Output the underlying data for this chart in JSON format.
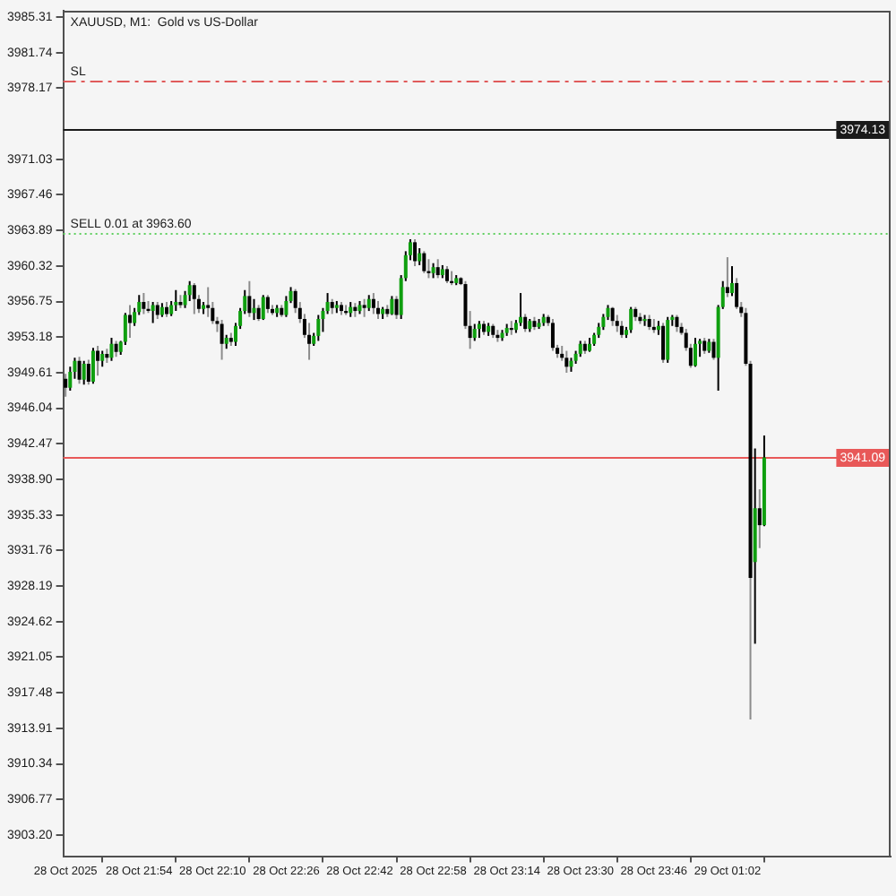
{
  "chart_data": {
    "type": "candlestick",
    "title": "XAUUSD, M1:  Gold vs US-Dollar",
    "categories": [
      "28 Oct 2025",
      null,
      null,
      null,
      null,
      null,
      null,
      null,
      null,
      null,
      null,
      null,
      null,
      null,
      null,
      null,
      "28 Oct 21:54",
      null,
      null,
      null,
      null,
      null,
      null,
      null,
      null,
      null,
      null,
      null,
      null,
      null,
      null,
      null,
      "28 Oct 22:10",
      null,
      null,
      null,
      null,
      null,
      null,
      null,
      null,
      null,
      null,
      null,
      null,
      null,
      null,
      null,
      "28 Oct 22:26",
      null,
      null,
      null,
      null,
      null,
      null,
      null,
      null,
      null,
      null,
      null,
      null,
      null,
      null,
      null,
      "28 Oct 22:42",
      null,
      null,
      null,
      null,
      null,
      null,
      null,
      null,
      null,
      null,
      null,
      null,
      null,
      null,
      null,
      "28 Oct 22:58",
      null,
      null,
      null,
      null,
      null,
      null,
      null,
      null,
      null,
      null,
      null,
      null,
      null,
      null,
      null,
      "28 Oct 23:14",
      null,
      null,
      null,
      null,
      null,
      null,
      null,
      null,
      null,
      null,
      null,
      null,
      null,
      null,
      null,
      "28 Oct 23:30",
      null,
      null,
      null,
      null,
      null,
      null,
      null,
      null,
      null,
      null,
      null,
      null,
      null,
      null,
      null,
      "28 Oct 23:46",
      null,
      null,
      null,
      null,
      null,
      null,
      null,
      null,
      null,
      null,
      null,
      null,
      null,
      null,
      null,
      "29 Oct 01:02",
      null,
      null,
      null,
      null,
      null,
      null,
      null,
      null
    ],
    "ohlc": [
      [
        3949.0,
        3949.5,
        3947.2,
        3948.1
      ],
      [
        3948.1,
        3950.2,
        3947.8,
        3949.7
      ],
      [
        3949.7,
        3951.1,
        3949.0,
        3950.8
      ],
      [
        3950.8,
        3951.2,
        3948.5,
        3948.9
      ],
      [
        3948.9,
        3950.8,
        3948.4,
        3950.5
      ],
      [
        3950.5,
        3950.9,
        3948.4,
        3948.7
      ],
      [
        3948.7,
        3952.1,
        3948.5,
        3951.8
      ],
      [
        3951.8,
        3952.3,
        3949.3,
        3950.8
      ],
      [
        3950.8,
        3951.8,
        3950.2,
        3951.5
      ],
      [
        3951.5,
        3952.0,
        3950.6,
        3951.1
      ],
      [
        3951.1,
        3953.1,
        3950.8,
        3952.5
      ],
      [
        3952.5,
        3952.8,
        3951.2,
        3951.7
      ],
      [
        3951.7,
        3952.8,
        3951.4,
        3952.7
      ],
      [
        3952.7,
        3955.6,
        3952.4,
        3955.4
      ],
      [
        3955.4,
        3956.4,
        3953.1,
        3954.6
      ],
      [
        3954.6,
        3956.1,
        3954.3,
        3955.7
      ],
      [
        3955.7,
        3957.4,
        3955.4,
        3956.7
      ],
      [
        3956.7,
        3957.6,
        3955.5,
        3956.0
      ],
      [
        3956.0,
        3956.8,
        3955.6,
        3955.8
      ],
      [
        3955.8,
        3956.7,
        3954.6,
        3956.4
      ],
      [
        3956.4,
        3956.7,
        3955.0,
        3955.4
      ],
      [
        3955.4,
        3956.6,
        3955.2,
        3956.2
      ],
      [
        3956.2,
        3956.7,
        3955.2,
        3955.5
      ],
      [
        3955.5,
        3956.8,
        3955.3,
        3956.4
      ],
      [
        3956.4,
        3957.9,
        3955.8,
        3956.7
      ],
      [
        3956.7,
        3957.4,
        3956.1,
        3956.4
      ],
      [
        3956.4,
        3957.8,
        3956.1,
        3957.4
      ],
      [
        3957.4,
        3958.8,
        3956.8,
        3958.4
      ],
      [
        3958.4,
        3958.6,
        3955.5,
        3957.0
      ],
      [
        3957.0,
        3957.4,
        3955.6,
        3956.0
      ],
      [
        3956.0,
        3956.7,
        3955.5,
        3956.4
      ],
      [
        3956.4,
        3958.2,
        3955.2,
        3956.1
      ],
      [
        3956.1,
        3956.7,
        3954.5,
        3954.8
      ],
      [
        3954.8,
        3955.2,
        3953.7,
        3954.5
      ],
      [
        3954.5,
        3954.9,
        3950.9,
        3952.5
      ],
      [
        3952.5,
        3953.4,
        3952.0,
        3953.1
      ],
      [
        3953.1,
        3953.6,
        3952.3,
        3952.7
      ],
      [
        3952.7,
        3954.6,
        3952.3,
        3954.3
      ],
      [
        3954.3,
        3956.1,
        3954.0,
        3955.8
      ],
      [
        3955.8,
        3957.9,
        3955.5,
        3957.3
      ],
      [
        3957.3,
        3958.8,
        3955.2,
        3955.6
      ],
      [
        3955.6,
        3957.0,
        3954.9,
        3956.1
      ],
      [
        3956.1,
        3956.4,
        3954.8,
        3955.0
      ],
      [
        3955.0,
        3957.4,
        3954.9,
        3957.2
      ],
      [
        3957.2,
        3957.4,
        3955.6,
        3956.0
      ],
      [
        3956.0,
        3956.4,
        3955.4,
        3955.6
      ],
      [
        3955.6,
        3956.4,
        3955.2,
        3956.1
      ],
      [
        3956.1,
        3956.4,
        3955.2,
        3955.4
      ],
      [
        3955.4,
        3957.3,
        3955.2,
        3956.8
      ],
      [
        3956.8,
        3958.2,
        3956.6,
        3957.8
      ],
      [
        3957.8,
        3958.0,
        3955.6,
        3956.1
      ],
      [
        3956.1,
        3956.7,
        3954.6,
        3955.0
      ],
      [
        3955.0,
        3955.5,
        3953.1,
        3953.4
      ],
      [
        3953.4,
        3954.6,
        3950.9,
        3952.5
      ],
      [
        3952.5,
        3953.6,
        3952.3,
        3953.3
      ],
      [
        3953.3,
        3955.4,
        3952.8,
        3955.0
      ],
      [
        3955.0,
        3956.1,
        3953.7,
        3955.8
      ],
      [
        3955.8,
        3957.6,
        3955.5,
        3956.7
      ],
      [
        3956.7,
        3957.0,
        3955.5,
        3956.1
      ],
      [
        3956.1,
        3956.8,
        3955.6,
        3956.4
      ],
      [
        3956.4,
        3956.7,
        3955.4,
        3955.8
      ],
      [
        3955.8,
        3956.4,
        3955.4,
        3955.6
      ],
      [
        3955.6,
        3956.7,
        3955.2,
        3956.2
      ],
      [
        3956.2,
        3956.6,
        3955.2,
        3955.8
      ],
      [
        3955.8,
        3956.8,
        3955.5,
        3956.4
      ],
      [
        3956.4,
        3957.0,
        3955.2,
        3956.1
      ],
      [
        3956.1,
        3957.4,
        3955.8,
        3957.0
      ],
      [
        3957.0,
        3957.6,
        3955.5,
        3956.1
      ],
      [
        3956.1,
        3956.8,
        3955.0,
        3955.5
      ],
      [
        3955.5,
        3956.2,
        3955.0,
        3956.0
      ],
      [
        3956.0,
        3956.4,
        3955.2,
        3955.5
      ],
      [
        3955.5,
        3957.3,
        3955.4,
        3957.0
      ],
      [
        3957.0,
        3957.3,
        3955.0,
        3955.4
      ],
      [
        3955.4,
        3959.4,
        3955.0,
        3959.1
      ],
      [
        3959.1,
        3961.8,
        3958.8,
        3961.4
      ],
      [
        3961.4,
        3963.0,
        3960.9,
        3962.7
      ],
      [
        3962.7,
        3963.0,
        3960.3,
        3960.8
      ],
      [
        3960.8,
        3962.1,
        3960.4,
        3961.6
      ],
      [
        3961.6,
        3961.8,
        3959.6,
        3959.8
      ],
      [
        3959.8,
        3961.0,
        3959.1,
        3959.6
      ],
      [
        3959.6,
        3960.6,
        3959.1,
        3960.2
      ],
      [
        3960.2,
        3961.0,
        3959.1,
        3959.4
      ],
      [
        3959.4,
        3960.4,
        3959.1,
        3960.0
      ],
      [
        3960.0,
        3960.3,
        3958.6,
        3958.8
      ],
      [
        3958.8,
        3959.8,
        3958.4,
        3958.6
      ],
      [
        3958.6,
        3959.4,
        3958.4,
        3959.1
      ],
      [
        3959.1,
        3959.2,
        3958.4,
        3958.5
      ],
      [
        3958.5,
        3958.8,
        3954.0,
        3954.3
      ],
      [
        3954.3,
        3955.8,
        3952.0,
        3953.1
      ],
      [
        3953.1,
        3954.5,
        3952.8,
        3954.0
      ],
      [
        3954.0,
        3954.8,
        3953.1,
        3954.5
      ],
      [
        3954.5,
        3954.8,
        3953.4,
        3953.7
      ],
      [
        3953.7,
        3954.6,
        3953.3,
        3954.3
      ],
      [
        3954.3,
        3954.5,
        3953.1,
        3953.4
      ],
      [
        3953.4,
        3953.9,
        3952.7,
        3953.1
      ],
      [
        3953.1,
        3953.9,
        3952.8,
        3953.6
      ],
      [
        3953.6,
        3954.5,
        3953.3,
        3954.1
      ],
      [
        3954.1,
        3954.8,
        3953.4,
        3953.9
      ],
      [
        3953.9,
        3954.9,
        3953.6,
        3954.6
      ],
      [
        3954.6,
        3957.6,
        3954.3,
        3955.2
      ],
      [
        3955.2,
        3955.5,
        3953.7,
        3954.0
      ],
      [
        3954.0,
        3955.0,
        3953.7,
        3954.8
      ],
      [
        3954.8,
        3955.2,
        3953.9,
        3954.2
      ],
      [
        3954.2,
        3955.0,
        3954.0,
        3954.6
      ],
      [
        3954.6,
        3955.5,
        3954.3,
        3955.2
      ],
      [
        3955.2,
        3955.4,
        3954.3,
        3954.6
      ],
      [
        3954.6,
        3955.0,
        3951.8,
        3952.1
      ],
      [
        3952.1,
        3952.4,
        3951.1,
        3951.5
      ],
      [
        3951.5,
        3952.3,
        3950.8,
        3951.1
      ],
      [
        3951.1,
        3951.8,
        3949.6,
        3950.2
      ],
      [
        3950.2,
        3951.1,
        3949.7,
        3950.8
      ],
      [
        3950.8,
        3951.8,
        3950.5,
        3951.5
      ],
      [
        3951.5,
        3952.8,
        3951.2,
        3952.5
      ],
      [
        3952.5,
        3952.8,
        3951.5,
        3951.8
      ],
      [
        3951.8,
        3953.1,
        3951.7,
        3952.5
      ],
      [
        3952.5,
        3953.6,
        3952.3,
        3953.4
      ],
      [
        3953.4,
        3954.6,
        3953.1,
        3954.2
      ],
      [
        3954.2,
        3955.5,
        3953.9,
        3955.2
      ],
      [
        3955.2,
        3956.4,
        3954.9,
        3956.1
      ],
      [
        3956.1,
        3956.2,
        3954.3,
        3954.8
      ],
      [
        3954.8,
        3955.4,
        3953.7,
        3954.3
      ],
      [
        3954.3,
        3954.8,
        3953.1,
        3953.4
      ],
      [
        3953.4,
        3954.2,
        3953.1,
        3953.9
      ],
      [
        3953.9,
        3956.2,
        3953.6,
        3956.0
      ],
      [
        3956.0,
        3956.2,
        3954.8,
        3955.2
      ],
      [
        3955.2,
        3955.6,
        3954.5,
        3954.8
      ],
      [
        3954.8,
        3955.4,
        3954.3,
        3955.0
      ],
      [
        3955.0,
        3955.4,
        3953.9,
        3954.2
      ],
      [
        3954.2,
        3955.0,
        3953.6,
        3953.9
      ],
      [
        3953.9,
        3954.8,
        3953.4,
        3954.3
      ],
      [
        3954.3,
        3954.6,
        3950.6,
        3950.9
      ],
      [
        3950.9,
        3955.2,
        3950.6,
        3954.9
      ],
      [
        3954.9,
        3955.4,
        3954.3,
        3955.2
      ],
      [
        3955.2,
        3955.4,
        3953.7,
        3954.2
      ],
      [
        3954.2,
        3954.6,
        3953.4,
        3953.6
      ],
      [
        3953.6,
        3954.0,
        3951.8,
        3952.1
      ],
      [
        3952.1,
        3952.5,
        3950.1,
        3950.3
      ],
      [
        3950.3,
        3953.1,
        3950.2,
        3952.5
      ],
      [
        3952.5,
        3953.0,
        3951.2,
        3952.8
      ],
      [
        3952.8,
        3953.1,
        3951.5,
        3951.8
      ],
      [
        3951.8,
        3953.0,
        3951.6,
        3952.7
      ],
      [
        3952.7,
        3953.0,
        3950.9,
        3951.1
      ],
      [
        3951.1,
        3956.4,
        3947.8,
        3956.2
      ],
      [
        3956.2,
        3958.8,
        3956.0,
        3958.2
      ],
      [
        3958.2,
        3961.2,
        3957.2,
        3957.6
      ],
      [
        3957.6,
        3960.3,
        3957.3,
        3958.6
      ],
      [
        3958.6,
        3959.1,
        3956.0,
        3956.2
      ],
      [
        3956.2,
        3956.7,
        3955.2,
        3955.6
      ],
      [
        3955.6,
        3956.1,
        3950.3,
        3950.5
      ],
      [
        3950.5,
        3950.8,
        3914.8,
        3929.0
      ],
      [
        3930.6,
        3942.0,
        3922.4,
        3936.0
      ],
      [
        3936.0,
        3937.9,
        3932.0,
        3934.3
      ],
      [
        3934.3,
        3943.3,
        3934.2,
        3941.1
      ]
    ],
    "colors": [
      "#000000",
      "#0f9f0f",
      "#0f9f0f",
      "#000000",
      "#0f9f0f",
      "#000000",
      "#0f9f0f",
      "#000000",
      "#0f9f0f",
      "#000000",
      "#0f9f0f",
      "#000000",
      "#0f9f0f",
      "#0f9f0f",
      "#000000",
      "#0f9f0f",
      "#0f9f0f",
      "#000000",
      "#000000",
      "#0f9f0f",
      "#000000",
      "#0f9f0f",
      "#000000",
      "#0f9f0f",
      "#0f9f0f",
      "#000000",
      "#0f9f0f",
      "#0f9f0f",
      "#000000",
      "#000000",
      "#0f9f0f",
      "#000000",
      "#000000",
      "#000000",
      "#000000",
      "#0f9f0f",
      "#000000",
      "#0f9f0f",
      "#0f9f0f",
      "#0f9f0f",
      "#000000",
      "#0f9f0f",
      "#000000",
      "#0f9f0f",
      "#000000",
      "#000000",
      "#0f9f0f",
      "#000000",
      "#0f9f0f",
      "#0f9f0f",
      "#000000",
      "#000000",
      "#000000",
      "#000000",
      "#0f9f0f",
      "#0f9f0f",
      "#0f9f0f",
      "#0f9f0f",
      "#000000",
      "#0f9f0f",
      "#000000",
      "#000000",
      "#0f9f0f",
      "#000000",
      "#0f9f0f",
      "#000000",
      "#0f9f0f",
      "#000000",
      "#000000",
      "#0f9f0f",
      "#000000",
      "#0f9f0f",
      "#000000",
      "#0f9f0f",
      "#0f9f0f",
      "#0f9f0f",
      "#000000",
      "#0f9f0f",
      "#000000",
      "#000000",
      "#0f9f0f",
      "#000000",
      "#0f9f0f",
      "#000000",
      "#000000",
      "#0f9f0f",
      "#000000",
      "#000000",
      "#000000",
      "#0f9f0f",
      "#0f9f0f",
      "#000000",
      "#0f9f0f",
      "#000000",
      "#000000",
      "#0f9f0f",
      "#0f9f0f",
      "#000000",
      "#0f9f0f",
      "#0f9f0f",
      "#000000",
      "#0f9f0f",
      "#000000",
      "#0f9f0f",
      "#0f9f0f",
      "#000000",
      "#000000",
      "#000000",
      "#000000",
      "#000000",
      "#0f9f0f",
      "#0f9f0f",
      "#0f9f0f",
      "#000000",
      "#0f9f0f",
      "#0f9f0f",
      "#0f9f0f",
      "#0f9f0f",
      "#0f9f0f",
      "#000000",
      "#000000",
      "#000000",
      "#0f9f0f",
      "#0f9f0f",
      "#000000",
      "#000000",
      "#0f9f0f",
      "#000000",
      "#000000",
      "#0f9f0f",
      "#000000",
      "#0f9f0f",
      "#0f9f0f",
      "#000000",
      "#000000",
      "#000000",
      "#000000",
      "#0f9f0f",
      "#0f9f0f",
      "#000000",
      "#0f9f0f",
      "#000000",
      "#0f9f0f",
      "#0f9f0f",
      "#000000",
      "#0f9f0f",
      "#000000",
      "#000000",
      "#000000",
      "#000000",
      "#0f9f0f",
      "#000000",
      "#0f9f0f"
    ],
    "ylim": [
      3901.0,
      3985.9
    ],
    "yticks": [
      {
        "value": 3903.2,
        "label": "3903.20"
      },
      3906.77,
      3910.34,
      3913.91,
      3917.48,
      3921.05,
      3924.62,
      3928.19,
      3931.76,
      3935.33,
      {
        "value": 3938.9,
        "label": "3938.90"
      },
      3942.47,
      3946.04,
      3949.61,
      3953.18,
      3956.75,
      3960.32,
      3963.89,
      3967.46,
      3971.03,
      3978.17,
      3981.74,
      3985.31
    ],
    "ref_lines": [
      {
        "axis": "y",
        "value": 3979.0,
        "label": "SL",
        "color": "#e05a5a",
        "line_style": "dashed"
      },
      {
        "axis": "y",
        "value": 3974.13,
        "label": "3974.13",
        "color": "#1a1a1a",
        "line_style": "solid"
      },
      {
        "axis": "y",
        "value": 3963.6,
        "label": "SELL 0.01 at 3963.60",
        "color": "#5fcf5f",
        "line_style": "dotted"
      },
      {
        "axis": "y",
        "value": 3941.09,
        "label": "3941.09",
        "color": "#e85858",
        "line_style": "solid"
      }
    ]
  }
}
